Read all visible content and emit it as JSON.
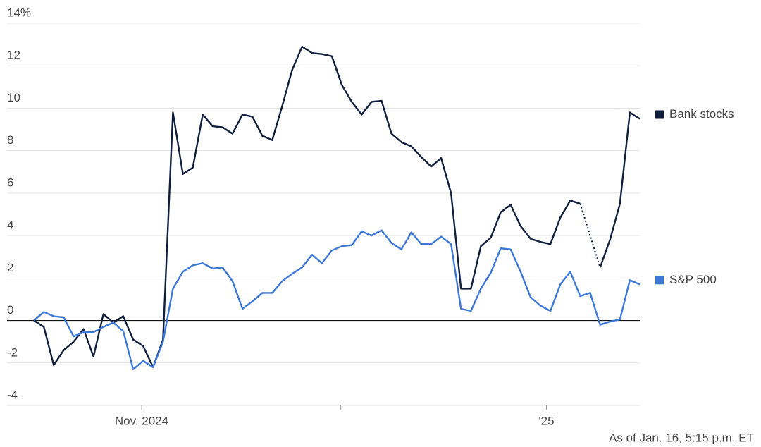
{
  "chart_data": {
    "type": "line",
    "xlim": [
      -2.7,
      61
    ],
    "xticks": [
      {
        "value": 10.85,
        "label": "Nov. 2024"
      },
      {
        "value": 30.9,
        "label": null
      },
      {
        "value": 51.6,
        "label": "'25"
      }
    ],
    "ylim": [
      -4,
      14
    ],
    "yticks": [
      -4,
      -2,
      0,
      2,
      4,
      6,
      8,
      10,
      12,
      {
        "value": 14,
        "label": "14%"
      }
    ],
    "grid": true,
    "legend": "right",
    "series": [
      {
        "name": "Bank stocks",
        "color": "#0f1f3d",
        "values": [
          0,
          -0.3,
          -2.1,
          -1.4,
          -1.0,
          -0.4,
          -1.7,
          0.3,
          -0.1,
          0.2,
          -0.9,
          -1.2,
          -2.2,
          -0.9,
          9.8,
          6.9,
          7.2,
          9.7,
          9.15,
          9.1,
          8.8,
          9.7,
          9.6,
          8.7,
          8.5,
          10.1,
          11.8,
          12.9,
          12.6,
          12.55,
          12.45,
          11.1,
          10.3,
          9.7,
          10.3,
          10.35,
          8.8,
          8.4,
          8.2,
          7.7,
          7.25,
          7.65,
          6.0,
          1.5,
          1.5,
          3.5,
          3.9,
          5.1,
          5.45,
          4.45,
          3.85,
          3.7,
          3.6,
          4.85,
          5.65,
          5.5,
          null,
          2.5,
          3.8,
          5.5,
          9.8,
          9.5
        ]
      },
      {
        "name": "S&P 500",
        "color": "#3b78d8",
        "values": [
          0,
          0.4,
          0.2,
          0.15,
          -0.75,
          -0.55,
          -0.55,
          -0.3,
          -0.1,
          -0.5,
          -2.3,
          -1.9,
          -2.2,
          -1.0,
          1.5,
          2.3,
          2.6,
          2.7,
          2.45,
          2.5,
          1.85,
          0.55,
          0.9,
          1.3,
          1.3,
          1.85,
          2.2,
          2.5,
          3.1,
          2.7,
          3.3,
          3.5,
          3.55,
          4.2,
          4.0,
          4.25,
          3.65,
          3.35,
          4.15,
          3.6,
          3.6,
          3.95,
          3.6,
          0.55,
          0.45,
          1.5,
          2.25,
          3.4,
          3.35,
          2.3,
          1.1,
          0.7,
          0.45,
          1.7,
          2.3,
          1.15,
          1.3,
          -0.2,
          -0.05,
          0.05,
          1.9,
          1.7
        ]
      }
    ],
    "footnote": "As of Jan. 16, 5:15 p.m. ET"
  }
}
